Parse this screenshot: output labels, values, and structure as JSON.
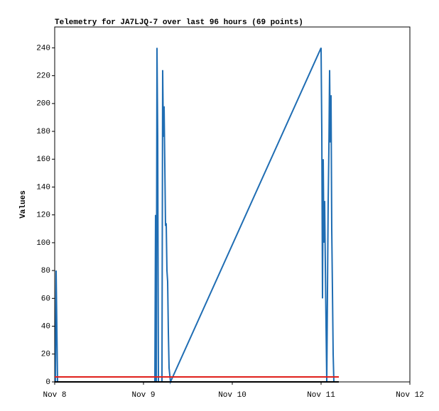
{
  "chart_data": {
    "type": "line",
    "title": "Telemetry for JA7LJQ-7 over last 96 hours (69 points)",
    "y_label": "Values",
    "xlim": [
      0,
      4
    ],
    "xticks": [
      {
        "value": 0,
        "label": "Nov 8"
      },
      {
        "value": 1,
        "label": "Nov 9"
      },
      {
        "value": 2,
        "label": "Nov 10"
      },
      {
        "value": 3,
        "label": "Nov 11"
      },
      {
        "value": 4,
        "label": "Nov 12"
      }
    ],
    "ylim": [
      0,
      255
    ],
    "yticks": [
      0,
      20,
      40,
      60,
      80,
      100,
      120,
      140,
      160,
      180,
      200,
      220,
      240
    ],
    "grid": false,
    "series": [
      {
        "color": "#1f6db3",
        "x": [
          0.008,
          0.016,
          0.024,
          0.032,
          null,
          1.128,
          1.136,
          1.144,
          1.152,
          1.16,
          1.168,
          1.208,
          1.216,
          1.224,
          1.232,
          1.24,
          1.248,
          1.256,
          1.264,
          1.272,
          1.28,
          1.288,
          1.304,
          3.0,
          3.008,
          3.016,
          3.024,
          3.032,
          3.04,
          3.048,
          3.056,
          3.064,
          3.08,
          3.088,
          3.096,
          3.104,
          3.112,
          3.12,
          3.128,
          3.136,
          3.144
        ],
        "values": [
          0,
          80,
          40,
          0,
          null,
          0,
          120,
          0,
          240,
          176,
          0,
          0,
          224,
          176,
          198,
          156,
          112,
          114,
          80,
          72,
          36,
          10,
          0,
          240,
          180,
          60,
          160,
          100,
          130,
          84,
          40,
          0,
          130,
          168,
          224,
          172,
          206,
          110,
          66,
          20,
          0
        ]
      },
      {
        "color": "#e0201b",
        "x": [
          0,
          3.2
        ],
        "values": [
          3.6,
          3.6
        ]
      },
      {
        "color": "#000000",
        "x": [
          0,
          3.2
        ],
        "values": [
          0,
          0
        ]
      }
    ]
  }
}
